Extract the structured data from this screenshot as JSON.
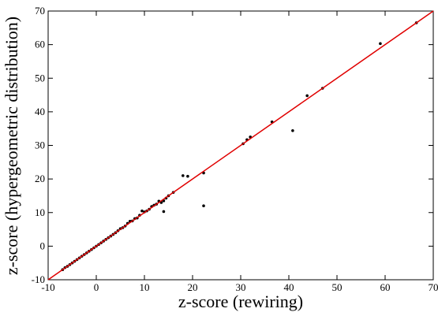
{
  "chart_data": {
    "type": "scatter",
    "x_label": "z-score (rewiring)",
    "y_label": "z-score (hypergeometric distribution)",
    "xlim": [
      -10,
      70
    ],
    "ylim": [
      -10,
      70
    ],
    "xticks": [
      -10,
      0,
      10,
      20,
      30,
      40,
      50,
      60,
      70
    ],
    "yticks": [
      -10,
      0,
      10,
      20,
      30,
      40,
      50,
      60,
      70
    ],
    "series": [
      {
        "color": "#000000",
        "x": [
          -7,
          -6.5,
          -6,
          -5.5,
          -5,
          -4.5,
          -4,
          -3.5,
          -3,
          -2.5,
          -2,
          -1.5,
          -1,
          -0.5,
          0,
          0.5,
          1,
          1.5,
          2,
          2.5,
          3,
          3.5,
          4,
          4.5,
          5,
          5.5,
          6,
          6.5,
          7,
          7.5,
          8,
          8.5,
          9,
          9.5,
          10,
          10.5,
          11,
          11.5,
          12,
          12.5,
          13,
          13.5,
          14,
          14.5,
          15,
          16,
          18,
          19,
          22.3,
          22.3,
          14,
          30.5,
          31.3,
          32,
          36.5,
          40.8,
          43.8,
          47,
          59,
          66.5
        ],
        "values": [
          -7,
          -6.4,
          -6,
          -5.5,
          -5,
          -4.5,
          -4,
          -3.5,
          -3,
          -2.5,
          -2,
          -1.5,
          -1,
          -0.5,
          0,
          0.5,
          1,
          1.5,
          2,
          2.5,
          3,
          3.5,
          4,
          4.6,
          5.2,
          5.5,
          6,
          6.8,
          7.4,
          7.5,
          8.2,
          8.4,
          9.2,
          10.5,
          10.2,
          10.5,
          11,
          11.8,
          12.2,
          12.5,
          13.4,
          13,
          13.5,
          14.3,
          15,
          16,
          21,
          20.8,
          21.8,
          12,
          10.3,
          30.5,
          31.7,
          32.5,
          37,
          34.4,
          44.8,
          47,
          60.3,
          66.5
        ]
      },
      {
        "color": "#e00000",
        "style": "line",
        "x": [
          -10,
          70
        ],
        "values": [
          -10,
          70
        ]
      }
    ]
  }
}
